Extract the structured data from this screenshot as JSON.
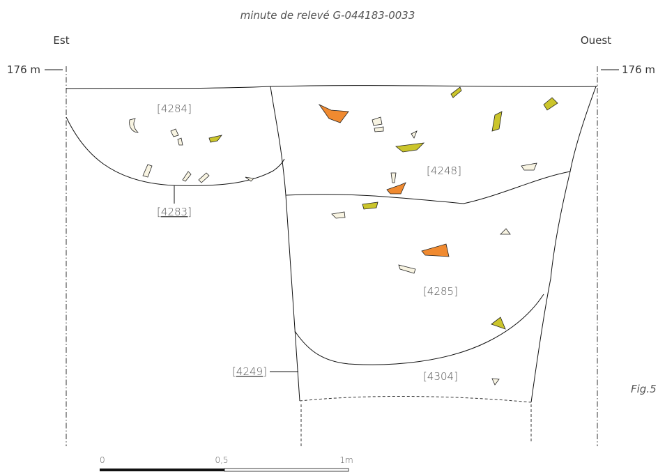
{
  "title": "minute de relevé G-044183-0033",
  "orientation": {
    "left": "Est",
    "right": "Ouest"
  },
  "elevation": {
    "left": "176 m",
    "right": "176 m"
  },
  "units": [
    {
      "label": "[4284]"
    },
    {
      "label": "[4248]"
    },
    {
      "label": "[4283]"
    },
    {
      "label": "[4285]"
    },
    {
      "label": "[4249]"
    },
    {
      "label": "[4304]"
    }
  ],
  "figure": "Fig.5",
  "scale": {
    "ticks": [
      "0",
      "0,5",
      "1m"
    ]
  }
}
